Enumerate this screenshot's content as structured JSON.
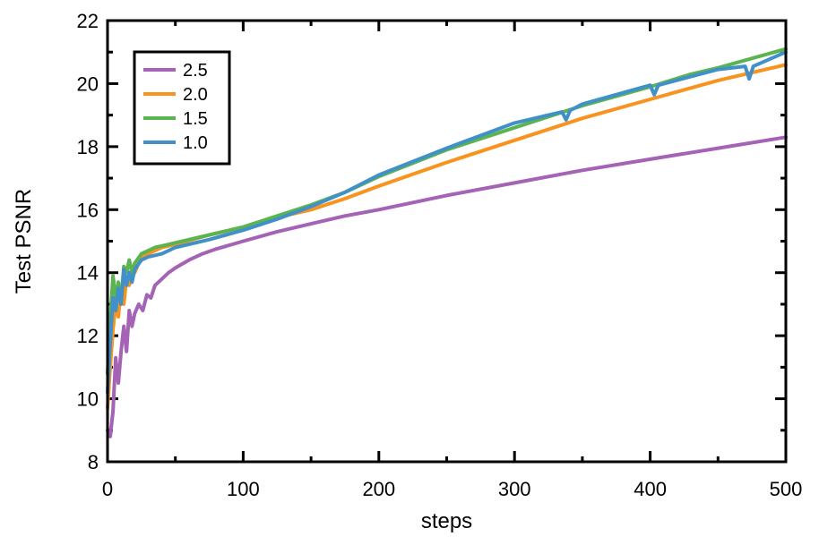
{
  "chart_data": {
    "type": "line",
    "title": "",
    "xlabel": "steps",
    "ylabel": "Test PSNR",
    "xlim": [
      0,
      500
    ],
    "ylim": [
      8,
      22
    ],
    "x_ticks": [
      0,
      100,
      200,
      300,
      400,
      500
    ],
    "y_ticks": [
      8,
      10,
      12,
      14,
      16,
      18,
      20,
      22
    ],
    "x_minor_step": 50,
    "y_minor_step": 1,
    "grid": false,
    "legend_position": "top-left",
    "series": [
      {
        "name": "2.5",
        "color": "#a463b4",
        "points": [
          [
            0,
            9.0
          ],
          [
            2,
            8.8
          ],
          [
            4,
            9.6
          ],
          [
            6,
            11.3
          ],
          [
            8,
            10.5
          ],
          [
            10,
            11.5
          ],
          [
            12,
            12.3
          ],
          [
            14,
            11.5
          ],
          [
            16,
            12.8
          ],
          [
            18,
            12.3
          ],
          [
            20,
            12.7
          ],
          [
            23,
            13.0
          ],
          [
            26,
            12.8
          ],
          [
            29,
            13.3
          ],
          [
            32,
            13.2
          ],
          [
            35,
            13.6
          ],
          [
            40,
            13.8
          ],
          [
            45,
            14.0
          ],
          [
            50,
            14.15
          ],
          [
            60,
            14.4
          ],
          [
            70,
            14.6
          ],
          [
            80,
            14.75
          ],
          [
            100,
            15.0
          ],
          [
            125,
            15.3
          ],
          [
            150,
            15.55
          ],
          [
            175,
            15.8
          ],
          [
            200,
            16.0
          ],
          [
            250,
            16.45
          ],
          [
            300,
            16.85
          ],
          [
            350,
            17.25
          ],
          [
            400,
            17.6
          ],
          [
            450,
            17.95
          ],
          [
            500,
            18.3
          ]
        ]
      },
      {
        "name": "2.0",
        "color": "#f7931e",
        "points": [
          [
            0,
            9.7
          ],
          [
            2,
            11.0
          ],
          [
            4,
            12.2
          ],
          [
            6,
            13.0
          ],
          [
            8,
            12.6
          ],
          [
            10,
            13.5
          ],
          [
            12,
            13.0
          ],
          [
            14,
            13.8
          ],
          [
            16,
            13.6
          ],
          [
            18,
            14.2
          ],
          [
            20,
            14.0
          ],
          [
            25,
            14.5
          ],
          [
            30,
            14.6
          ],
          [
            35,
            14.7
          ],
          [
            40,
            14.8
          ],
          [
            50,
            14.9
          ],
          [
            75,
            15.2
          ],
          [
            100,
            15.45
          ],
          [
            125,
            15.75
          ],
          [
            150,
            16.0
          ],
          [
            175,
            16.35
          ],
          [
            200,
            16.75
          ],
          [
            250,
            17.5
          ],
          [
            300,
            18.2
          ],
          [
            350,
            18.9
          ],
          [
            400,
            19.5
          ],
          [
            450,
            20.1
          ],
          [
            500,
            20.6
          ]
        ]
      },
      {
        "name": "1.5",
        "color": "#5ab450",
        "points": [
          [
            0,
            10.8
          ],
          [
            2,
            12.5
          ],
          [
            4,
            13.9
          ],
          [
            6,
            13.2
          ],
          [
            8,
            13.7
          ],
          [
            10,
            13.1
          ],
          [
            12,
            14.2
          ],
          [
            14,
            14.0
          ],
          [
            16,
            14.4
          ],
          [
            18,
            14.0
          ],
          [
            20,
            14.3
          ],
          [
            25,
            14.6
          ],
          [
            30,
            14.7
          ],
          [
            35,
            14.8
          ],
          [
            40,
            14.85
          ],
          [
            50,
            14.95
          ],
          [
            75,
            15.2
          ],
          [
            100,
            15.45
          ],
          [
            125,
            15.8
          ],
          [
            150,
            16.15
          ],
          [
            175,
            16.55
          ],
          [
            200,
            17.05
          ],
          [
            250,
            17.9
          ],
          [
            300,
            18.6
          ],
          [
            350,
            19.3
          ],
          [
            400,
            19.9
          ],
          [
            430,
            20.3
          ],
          [
            450,
            20.5
          ],
          [
            500,
            21.1
          ]
        ]
      },
      {
        "name": "1.0",
        "color": "#4190c8",
        "points": [
          [
            0,
            10.2
          ],
          [
            2,
            11.8
          ],
          [
            4,
            13.2
          ],
          [
            6,
            12.8
          ],
          [
            8,
            13.5
          ],
          [
            10,
            13.0
          ],
          [
            12,
            14.1
          ],
          [
            14,
            13.6
          ],
          [
            16,
            14.0
          ],
          [
            18,
            13.7
          ],
          [
            20,
            14.1
          ],
          [
            25,
            14.4
          ],
          [
            30,
            14.5
          ],
          [
            35,
            14.55
          ],
          [
            40,
            14.6
          ],
          [
            50,
            14.8
          ],
          [
            75,
            15.05
          ],
          [
            100,
            15.35
          ],
          [
            125,
            15.7
          ],
          [
            150,
            16.1
          ],
          [
            175,
            16.55
          ],
          [
            200,
            17.1
          ],
          [
            250,
            17.95
          ],
          [
            300,
            18.75
          ],
          [
            335,
            19.1
          ],
          [
            338,
            18.85
          ],
          [
            341,
            19.15
          ],
          [
            350,
            19.35
          ],
          [
            400,
            19.95
          ],
          [
            403,
            19.65
          ],
          [
            406,
            19.95
          ],
          [
            450,
            20.45
          ],
          [
            470,
            20.55
          ],
          [
            473,
            20.15
          ],
          [
            476,
            20.55
          ],
          [
            500,
            21.0
          ]
        ]
      }
    ]
  }
}
